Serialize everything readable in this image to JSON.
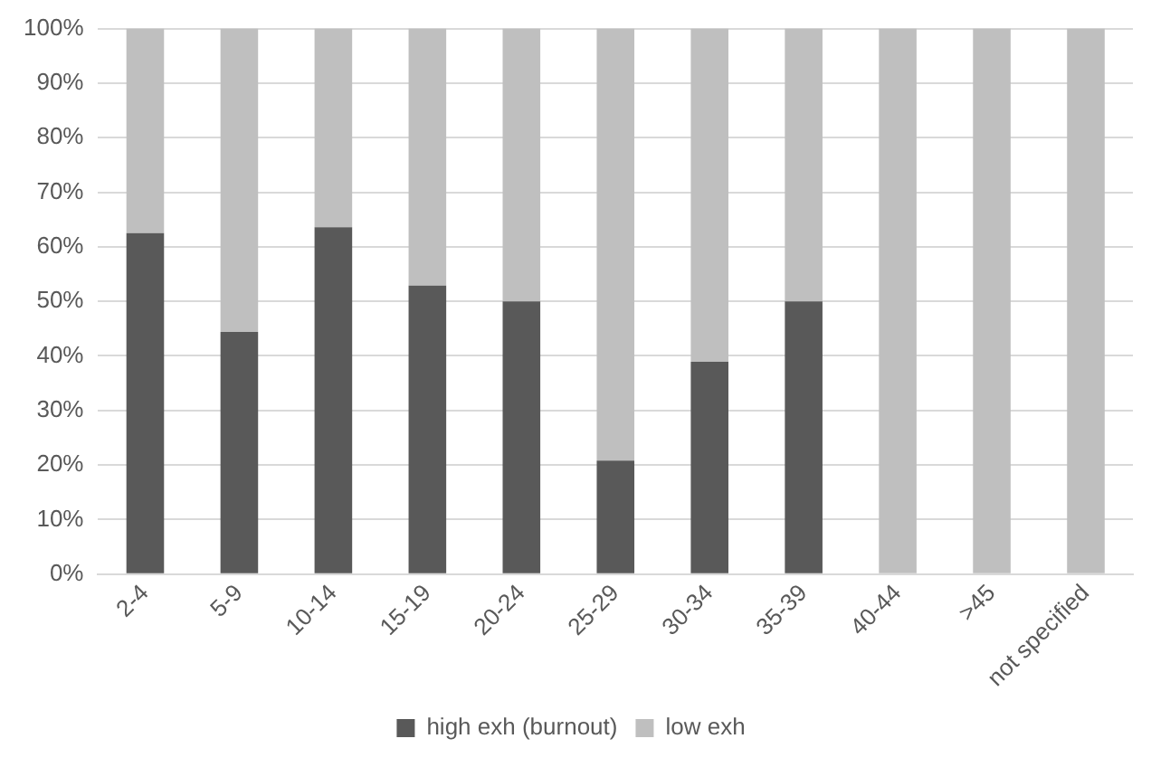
{
  "chart_data": {
    "type": "bar",
    "stacked": true,
    "categories": [
      "2-4",
      "5-9",
      "10-14",
      "15-19",
      "20-24",
      "25-29",
      "30-34",
      "35-39",
      "40-44",
      ">45",
      "not specified"
    ],
    "series": [
      {
        "name": "high exh (burnout)",
        "color": "#595959",
        "values": [
          62.5,
          44.4,
          63.6,
          52.9,
          50,
          20.8,
          38.9,
          50,
          0,
          0,
          0
        ]
      },
      {
        "name": "low exh",
        "color": "#bfbfbf",
        "values": [
          37.5,
          55.6,
          36.4,
          47.1,
          50,
          79.2,
          61.1,
          50,
          100,
          100,
          100
        ]
      }
    ],
    "ylim": [
      0,
      100
    ],
    "yticks": [
      {
        "value": 0,
        "label": "0%"
      },
      {
        "value": 10,
        "label": "10%"
      },
      {
        "value": 20,
        "label": "20%"
      },
      {
        "value": 30,
        "label": "30%"
      },
      {
        "value": 40,
        "label": "40%"
      },
      {
        "value": 50,
        "label": "50%"
      },
      {
        "value": 60,
        "label": "60%"
      },
      {
        "value": 70,
        "label": "70%"
      },
      {
        "value": 80,
        "label": "80%"
      },
      {
        "value": 90,
        "label": "90%"
      },
      {
        "value": 100,
        "label": "100%"
      }
    ],
    "grid": "y",
    "legend": "bottom"
  }
}
